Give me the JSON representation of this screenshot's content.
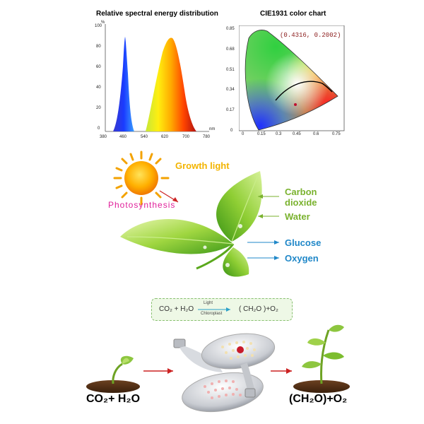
{
  "spectral_chart": {
    "title": "Relative spectral energy distribution",
    "y_unit": "%",
    "y_ticks": [
      "100",
      "80",
      "60",
      "40",
      "20",
      "0"
    ],
    "x_unit": "nm",
    "x_ticks": [
      "380",
      "460",
      "540",
      "620",
      "700",
      "780"
    ]
  },
  "cie_chart": {
    "title": "CIE1931 color chart",
    "coordinate": "(0.4316, 0.2002)",
    "y_ticks": [
      "0.85",
      "0.68",
      "0.51",
      "0.34",
      "0.17",
      "0"
    ],
    "x_ticks": [
      "0",
      "0.15",
      "0.3",
      "0.45",
      "0.6",
      "0.75"
    ]
  },
  "photosynthesis": {
    "growth_light": "Growth light",
    "photosynthesis": "Photosynthesis",
    "carbon_dioxide_line1": "Carbon",
    "carbon_dioxide_line2": "dioxide",
    "water": "Water",
    "glucose": "Glucose",
    "oxygen": "Oxygen"
  },
  "equation": {
    "left": "CO₂ + H₂O",
    "above_arrow": "Light",
    "below_arrow": "Chloroplast",
    "right": "( CH₂O )+O₂"
  },
  "bottom": {
    "left_label": "CO₂+ H₂O",
    "right_label": "(CH₂O)+O₂"
  },
  "colors": {
    "green_label": "#7ab22e",
    "blue_label": "#1f87c8",
    "arrow_red": "#cc2222",
    "photosynthesis_pink": "#e0209a"
  }
}
